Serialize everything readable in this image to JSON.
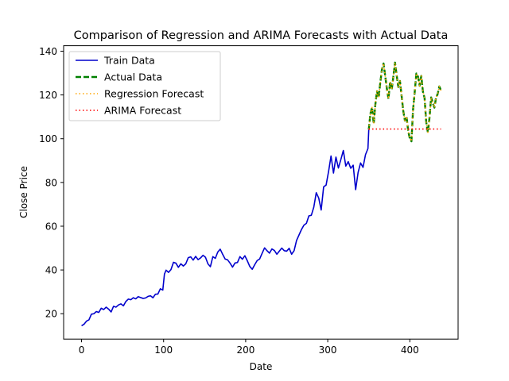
{
  "chart_data": {
    "type": "line",
    "title": "Comparison of Regression and ARIMA Forecasts with Actual Data",
    "xlabel": "Date",
    "ylabel": "Close Price",
    "xlim": [
      -21.85,
      458.85
    ],
    "ylim": [
      8.4,
      142.5
    ],
    "xticks": [
      0,
      100,
      200,
      300,
      400
    ],
    "yticks": [
      20,
      40,
      60,
      80,
      100,
      120,
      140
    ],
    "xtick_labels": [
      "0",
      "100",
      "200",
      "300",
      "400"
    ],
    "ytick_labels": [
      "20",
      "40",
      "60",
      "80",
      "100",
      "120",
      "140"
    ],
    "grid": false,
    "legend_position": "upper-left",
    "series": [
      {
        "name": "Train Data",
        "color": "#0000cc",
        "style": "solid",
        "points": [
          [
            0,
            14.5
          ],
          [
            3,
            15.2
          ],
          [
            6,
            16.6
          ],
          [
            9,
            17.2
          ],
          [
            12,
            19.8
          ],
          [
            15,
            20.0
          ],
          [
            18,
            21.0
          ],
          [
            21,
            20.6
          ],
          [
            24,
            22.5
          ],
          [
            27,
            21.9
          ],
          [
            30,
            23.0
          ],
          [
            33,
            22.1
          ],
          [
            36,
            20.8
          ],
          [
            39,
            23.4
          ],
          [
            42,
            23.0
          ],
          [
            45,
            24.0
          ],
          [
            48,
            24.5
          ],
          [
            51,
            23.6
          ],
          [
            54,
            25.6
          ],
          [
            57,
            26.7
          ],
          [
            60,
            26.4
          ],
          [
            63,
            27.3
          ],
          [
            66,
            26.8
          ],
          [
            69,
            27.8
          ],
          [
            72,
            27.4
          ],
          [
            75,
            27.0
          ],
          [
            78,
            27.2
          ],
          [
            81,
            27.9
          ],
          [
            84,
            28.2
          ],
          [
            87,
            27.3
          ],
          [
            90,
            28.9
          ],
          [
            93,
            29.0
          ],
          [
            96,
            31.4
          ],
          [
            99,
            30.8
          ],
          [
            101,
            38.1
          ],
          [
            103,
            39.9
          ],
          [
            106,
            38.9
          ],
          [
            109,
            40.2
          ],
          [
            112,
            43.5
          ],
          [
            115,
            43.1
          ],
          [
            118,
            41.2
          ],
          [
            121,
            42.8
          ],
          [
            124,
            41.8
          ],
          [
            127,
            42.8
          ],
          [
            130,
            45.6
          ],
          [
            133,
            46.0
          ],
          [
            136,
            44.5
          ],
          [
            139,
            46.2
          ],
          [
            142,
            44.7
          ],
          [
            145,
            45.5
          ],
          [
            148,
            46.7
          ],
          [
            151,
            45.8
          ],
          [
            154,
            42.8
          ],
          [
            157,
            41.5
          ],
          [
            160,
            46.1
          ],
          [
            163,
            45.3
          ],
          [
            166,
            48.2
          ],
          [
            169,
            49.5
          ],
          [
            172,
            47.1
          ],
          [
            175,
            45.0
          ],
          [
            178,
            44.6
          ],
          [
            181,
            43.1
          ],
          [
            184,
            41.3
          ],
          [
            187,
            43.2
          ],
          [
            190,
            43.4
          ],
          [
            193,
            46.1
          ],
          [
            196,
            44.9
          ],
          [
            199,
            46.5
          ],
          [
            202,
            44.2
          ],
          [
            205,
            41.6
          ],
          [
            208,
            40.3
          ],
          [
            211,
            42.4
          ],
          [
            214,
            44.3
          ],
          [
            217,
            45.0
          ],
          [
            220,
            47.6
          ],
          [
            223,
            50.1
          ],
          [
            226,
            48.8
          ],
          [
            229,
            47.7
          ],
          [
            232,
            49.6
          ],
          [
            235,
            48.9
          ],
          [
            238,
            47.2
          ],
          [
            241,
            48.6
          ],
          [
            244,
            50.0
          ],
          [
            247,
            48.8
          ],
          [
            250,
            48.6
          ],
          [
            253,
            49.9
          ],
          [
            256,
            47.2
          ],
          [
            259,
            48.8
          ],
          [
            262,
            53.5
          ],
          [
            265,
            56.0
          ],
          [
            268,
            58.5
          ],
          [
            271,
            60.5
          ],
          [
            274,
            61.3
          ],
          [
            277,
            64.7
          ],
          [
            280,
            65.0
          ],
          [
            283,
            68.7
          ],
          [
            286,
            75.3
          ],
          [
            289,
            72.9
          ],
          [
            292,
            67.4
          ],
          [
            295,
            78.0
          ],
          [
            298,
            78.8
          ],
          [
            301,
            85.0
          ],
          [
            304,
            92.1
          ],
          [
            307,
            84.3
          ],
          [
            310,
            91.6
          ],
          [
            313,
            86.6
          ],
          [
            316,
            90.5
          ],
          [
            319,
            94.6
          ],
          [
            322,
            87.5
          ],
          [
            325,
            89.5
          ],
          [
            328,
            86.5
          ],
          [
            331,
            87.9
          ],
          [
            334,
            76.7
          ],
          [
            337,
            84.6
          ],
          [
            340,
            88.9
          ],
          [
            343,
            86.9
          ],
          [
            346,
            92.7
          ],
          [
            349,
            95.5
          ],
          [
            350,
            104.2
          ]
        ]
      },
      {
        "name": "Actual Data",
        "color": "#008000",
        "style": "dashed",
        "points": [
          [
            350,
            104.2
          ],
          [
            352,
            111.5
          ],
          [
            354,
            114.3
          ],
          [
            356,
            106.8
          ],
          [
            358,
            115.6
          ],
          [
            360,
            121.7
          ],
          [
            362,
            118.8
          ],
          [
            364,
            125.5
          ],
          [
            366,
            131.6
          ],
          [
            368,
            134.4
          ],
          [
            370,
            128.8
          ],
          [
            372,
            123.0
          ],
          [
            374,
            118.2
          ],
          [
            376,
            126.1
          ],
          [
            378,
            122.4
          ],
          [
            380,
            128.6
          ],
          [
            382,
            134.8
          ],
          [
            384,
            129.0
          ],
          [
            386,
            123.6
          ],
          [
            388,
            126.4
          ],
          [
            390,
            119.6
          ],
          [
            392,
            112.8
          ],
          [
            394,
            108.3
          ],
          [
            396,
            110.2
          ],
          [
            398,
            103.6
          ],
          [
            400,
            100.1
          ],
          [
            402,
            98.8
          ],
          [
            404,
            113.4
          ],
          [
            406,
            121.4
          ],
          [
            408,
            129.8
          ],
          [
            410,
            128.4
          ],
          [
            412,
            124.2
          ],
          [
            414,
            128.7
          ],
          [
            416,
            121.5
          ],
          [
            418,
            118.6
          ],
          [
            420,
            107.6
          ],
          [
            422,
            102.9
          ],
          [
            424,
            109.5
          ],
          [
            426,
            118.9
          ],
          [
            428,
            116.3
          ],
          [
            430,
            114.2
          ],
          [
            432,
            118.8
          ],
          [
            434,
            120.5
          ],
          [
            436,
            123.9
          ],
          [
            438,
            122.0
          ]
        ]
      },
      {
        "name": "Regression Forecast",
        "color": "#ffa500",
        "style": "dotted",
        "points": [
          [
            350,
            104.2
          ],
          [
            352,
            111.5
          ],
          [
            354,
            114.3
          ],
          [
            356,
            106.8
          ],
          [
            358,
            115.6
          ],
          [
            360,
            121.7
          ],
          [
            362,
            118.8
          ],
          [
            364,
            125.5
          ],
          [
            366,
            131.6
          ],
          [
            368,
            134.4
          ],
          [
            370,
            128.8
          ],
          [
            372,
            123.0
          ],
          [
            374,
            118.2
          ],
          [
            376,
            126.1
          ],
          [
            378,
            122.4
          ],
          [
            380,
            128.6
          ],
          [
            382,
            134.8
          ],
          [
            384,
            129.0
          ],
          [
            386,
            123.6
          ],
          [
            388,
            126.4
          ],
          [
            390,
            119.6
          ],
          [
            392,
            112.8
          ],
          [
            394,
            108.3
          ],
          [
            396,
            110.2
          ],
          [
            398,
            103.6
          ],
          [
            400,
            100.1
          ],
          [
            402,
            98.8
          ],
          [
            404,
            113.4
          ],
          [
            406,
            121.4
          ],
          [
            408,
            129.8
          ],
          [
            410,
            128.4
          ],
          [
            412,
            124.2
          ],
          [
            414,
            128.7
          ],
          [
            416,
            121.5
          ],
          [
            418,
            118.6
          ],
          [
            420,
            107.6
          ],
          [
            422,
            102.9
          ],
          [
            424,
            109.5
          ],
          [
            426,
            118.9
          ],
          [
            428,
            116.3
          ],
          [
            430,
            114.2
          ],
          [
            432,
            118.8
          ],
          [
            434,
            120.5
          ],
          [
            436,
            123.9
          ],
          [
            438,
            122.0
          ]
        ]
      },
      {
        "name": "ARIMA Forecast",
        "color": "#ff0000",
        "style": "dotted",
        "points": [
          [
            350,
            104.2
          ],
          [
            351,
            104.4
          ],
          [
            438,
            104.4
          ]
        ]
      }
    ]
  }
}
